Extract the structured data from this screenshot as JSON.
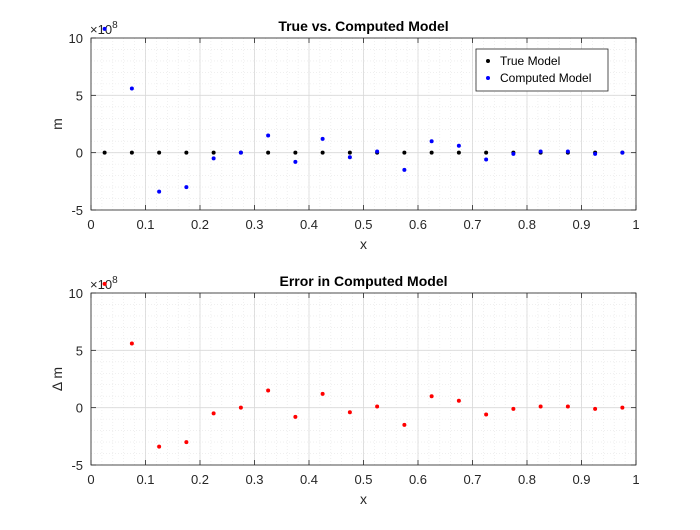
{
  "chart_data": [
    {
      "type": "scatter",
      "title": "True vs. Computed Model",
      "xlabel": "x",
      "ylabel": "m",
      "exponent_label": "×10",
      "exponent_power": "8",
      "xlim": [
        0,
        1
      ],
      "ylim": [
        -5,
        10
      ],
      "xticks": [
        "0",
        "0.1",
        "0.2",
        "0.3",
        "0.4",
        "0.5",
        "0.6",
        "0.7",
        "0.8",
        "0.9",
        "1"
      ],
      "yticks": [
        "-5",
        "0",
        "5",
        "10"
      ],
      "grid": true,
      "minor_grid": true,
      "legend_position": "top-right",
      "x": [
        0.025,
        0.075,
        0.125,
        0.175,
        0.225,
        0.275,
        0.325,
        0.375,
        0.425,
        0.475,
        0.525,
        0.575,
        0.625,
        0.675,
        0.725,
        0.775,
        0.825,
        0.875,
        0.925,
        0.975
      ],
      "series": [
        {
          "name": "True Model",
          "color": "#000000",
          "values": [
            0,
            0,
            0,
            0,
            0,
            0,
            0,
            0,
            0,
            0,
            0,
            0,
            0,
            0,
            0,
            0,
            0,
            0,
            0,
            0
          ]
        },
        {
          "name": "Computed Model",
          "color": "#0000ff",
          "values": [
            10.8,
            5.6,
            -3.4,
            -3.0,
            -0.5,
            0.0,
            1.5,
            -0.8,
            1.2,
            -0.4,
            0.1,
            -1.5,
            1.0,
            0.6,
            -0.6,
            -0.1,
            0.1,
            0.1,
            -0.1,
            0.0
          ]
        }
      ]
    },
    {
      "type": "scatter",
      "title": "Error in Computed Model",
      "xlabel": "x",
      "ylabel": "Δ m",
      "exponent_label": "×10",
      "exponent_power": "8",
      "xlim": [
        0,
        1
      ],
      "ylim": [
        -5,
        10
      ],
      "xticks": [
        "0",
        "0.1",
        "0.2",
        "0.3",
        "0.4",
        "0.5",
        "0.6",
        "0.7",
        "0.8",
        "0.9",
        "1"
      ],
      "yticks": [
        "-5",
        "0",
        "5",
        "10"
      ],
      "grid": true,
      "minor_grid": true,
      "x": [
        0.025,
        0.075,
        0.125,
        0.175,
        0.225,
        0.275,
        0.325,
        0.375,
        0.425,
        0.475,
        0.525,
        0.575,
        0.625,
        0.675,
        0.725,
        0.775,
        0.825,
        0.875,
        0.925,
        0.975
      ],
      "series": [
        {
          "color": "#ff0000",
          "values": [
            10.8,
            5.6,
            -3.4,
            -3.0,
            -0.5,
            0.0,
            1.5,
            -0.8,
            1.2,
            -0.4,
            0.1,
            -1.5,
            1.0,
            0.6,
            -0.6,
            -0.1,
            0.1,
            0.1,
            -0.1,
            0.0
          ]
        }
      ]
    }
  ]
}
